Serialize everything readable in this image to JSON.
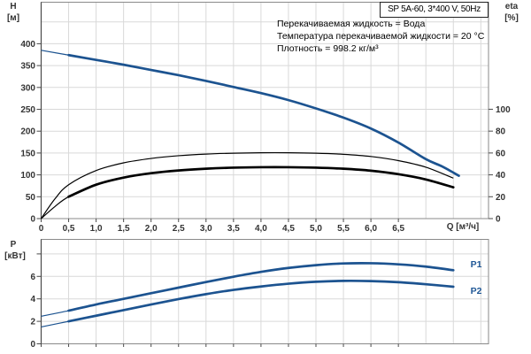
{
  "header": {
    "title": "SP 5A-60, 3*400 V, 50Hz",
    "info_lines": [
      "Перекачиваемая жидкость = Вода",
      "Температура перекачиваемой жидкости = 20 °C",
      "Плотность = 998.2 кг/м³"
    ]
  },
  "axes": {
    "h_label": "H",
    "h_unit": "[м]",
    "eta_label": "eta",
    "eta_unit": "[%]",
    "p_label": "P",
    "p_unit": "[кВт]",
    "q_unit": "Q [м³/ч]",
    "p1_label": "P1",
    "p2_label": "P2"
  },
  "colors": {
    "curve_blue": "#1c5390",
    "curve_black": "#000000",
    "grid": "#d9d9d9",
    "frame": "#8a8a8a",
    "axis_dark": "#4a4a4a",
    "tick_text": "#333333",
    "label_blue": "#1f5796"
  },
  "chart_data": [
    {
      "type": "line",
      "title": "SP 5A-60, 3*400 V, 50Hz",
      "x": {
        "label": "Q [м³/ч]",
        "min": 0,
        "max": 8.14,
        "tick_values": [
          0,
          0.5,
          1,
          1.5,
          2,
          2.5,
          3,
          3.5,
          4,
          4.5,
          5,
          5.5,
          6,
          6.5
        ],
        "tick_labels": [
          "0",
          "0,5",
          "1,0",
          "1,5",
          "2,0",
          "2,5",
          "3,0",
          "3,5",
          "4,0",
          "4,5",
          "5,0",
          "5,5",
          "6,0",
          "6,5"
        ],
        "unlabeled_grid": [
          7.0,
          7.5,
          8.0
        ]
      },
      "y_left": {
        "label": "H [м]",
        "min": 0,
        "max": 494,
        "ticks": [
          0,
          50,
          100,
          150,
          200,
          250,
          300,
          350,
          400
        ],
        "unlabeled_grid": [
          450
        ]
      },
      "y_right": {
        "label": "eta [%]",
        "min": 0,
        "max": 100,
        "ticks": [
          0,
          20,
          40,
          60,
          80,
          100
        ]
      },
      "series": [
        {
          "name": "eta-pump",
          "legend": "eta pump",
          "axis": "right",
          "color_key": "curve_black",
          "thick_from": null,
          "points": [
            [
              0,
              0
            ],
            [
              0.25,
              18
            ],
            [
              0.5,
              31
            ],
            [
              1,
              44
            ],
            [
              1.5,
              51
            ],
            [
              2,
              55
            ],
            [
              2.5,
              57.5
            ],
            [
              3,
              59
            ],
            [
              3.5,
              59.8
            ],
            [
              4,
              60.2
            ],
            [
              4.5,
              60.2
            ],
            [
              5,
              59.8
            ],
            [
              5.5,
              58.8
            ],
            [
              6,
              56.8
            ],
            [
              6.5,
              53
            ],
            [
              7,
              47
            ],
            [
              7.5,
              37
            ]
          ]
        },
        {
          "name": "eta-total",
          "legend": "eta pump+motor",
          "axis": "right",
          "color_key": "curve_black",
          "thick_from": 0.5,
          "points": [
            [
              0,
              0
            ],
            [
              0.25,
              11
            ],
            [
              0.5,
              20
            ],
            [
              1,
              31
            ],
            [
              1.5,
              37.5
            ],
            [
              2,
              41.5
            ],
            [
              2.5,
              44
            ],
            [
              3,
              45.6
            ],
            [
              3.5,
              46.6
            ],
            [
              4,
              47
            ],
            [
              4.5,
              47
            ],
            [
              5,
              46.6
            ],
            [
              5.5,
              45.6
            ],
            [
              6,
              43.8
            ],
            [
              6.5,
              40.6
            ],
            [
              7,
              35.8
            ],
            [
              7.5,
              28.6
            ]
          ]
        },
        {
          "name": "head",
          "legend": "H",
          "axis": "left",
          "color_key": "curve_blue",
          "thick_from": 0.5,
          "points": [
            [
              0,
              385
            ],
            [
              0.5,
              374
            ],
            [
              1,
              363
            ],
            [
              1.5,
              352
            ],
            [
              2,
              340
            ],
            [
              2.5,
              328
            ],
            [
              3,
              315
            ],
            [
              3.5,
              301
            ],
            [
              4,
              287
            ],
            [
              4.5,
              271
            ],
            [
              5,
              252
            ],
            [
              5.5,
              231
            ],
            [
              6,
              206
            ],
            [
              6.5,
              174
            ],
            [
              7,
              136
            ],
            [
              7.3,
              119
            ],
            [
              7.6,
              98
            ]
          ]
        }
      ]
    },
    {
      "type": "line",
      "x": {
        "label": "Q [м³/ч]",
        "min": 0,
        "max": 8.14,
        "tick_values": [
          0,
          0.5,
          1,
          1.5,
          2,
          2.5,
          3,
          3.5,
          4,
          4.5,
          5,
          5.5,
          6,
          6.5
        ],
        "unlabeled_grid": [
          7.0,
          7.5,
          8.0
        ]
      },
      "y_left": {
        "label": "P [кВт]",
        "min": 0,
        "max": 9.3,
        "ticks": [
          0,
          2,
          4,
          6
        ],
        "unlabeled_grid": [
          8
        ]
      },
      "series": [
        {
          "name": "p1",
          "legend": "P1",
          "axis": "left",
          "color_key": "curve_blue",
          "thick_from": 0.5,
          "points": [
            [
              0,
              2.45
            ],
            [
              0.5,
              2.95
            ],
            [
              1,
              3.5
            ],
            [
              1.5,
              4.0
            ],
            [
              2,
              4.5
            ],
            [
              2.5,
              5.0
            ],
            [
              3,
              5.5
            ],
            [
              3.5,
              5.97
            ],
            [
              4,
              6.4
            ],
            [
              4.5,
              6.75
            ],
            [
              5,
              7.0
            ],
            [
              5.5,
              7.15
            ],
            [
              6,
              7.17
            ],
            [
              6.5,
              7.07
            ],
            [
              7,
              6.87
            ],
            [
              7.5,
              6.55
            ]
          ]
        },
        {
          "name": "p2",
          "legend": "P2",
          "axis": "left",
          "color_key": "curve_blue",
          "thick_from": 0.5,
          "points": [
            [
              0,
              1.5
            ],
            [
              0.5,
              2.0
            ],
            [
              1,
              2.5
            ],
            [
              1.5,
              3.0
            ],
            [
              2,
              3.5
            ],
            [
              2.5,
              3.98
            ],
            [
              3,
              4.42
            ],
            [
              3.5,
              4.8
            ],
            [
              4,
              5.1
            ],
            [
              4.5,
              5.35
            ],
            [
              5,
              5.52
            ],
            [
              5.5,
              5.6
            ],
            [
              6,
              5.58
            ],
            [
              6.5,
              5.48
            ],
            [
              7,
              5.3
            ],
            [
              7.5,
              5.08
            ]
          ]
        }
      ]
    }
  ]
}
